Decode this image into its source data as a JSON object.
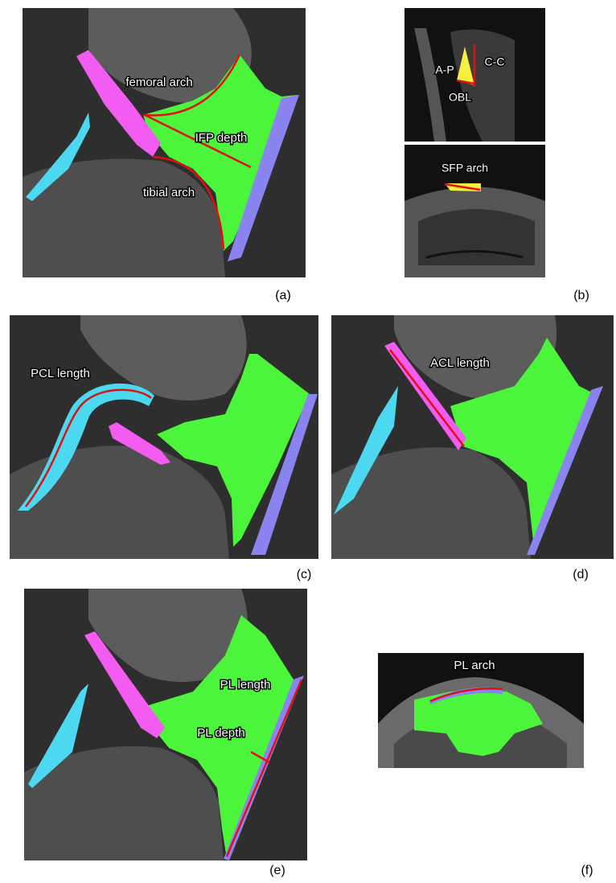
{
  "panels": [
    {
      "label": "(a)",
      "annotations": [
        "femoral arch",
        "IFP depth",
        "tibial arch"
      ]
    },
    {
      "label": "(b)",
      "annotations": [
        "A-P",
        "C-C",
        "OBL",
        "SFP arch"
      ]
    },
    {
      "label": "(c)",
      "annotations": [
        "PCL length"
      ]
    },
    {
      "label": "(d)",
      "annotations": [
        "ACL length"
      ]
    },
    {
      "label": "(e)",
      "annotations": [
        "PL length",
        "PL depth"
      ]
    },
    {
      "label": "(f)",
      "annotations": [
        "PL arch"
      ]
    }
  ]
}
